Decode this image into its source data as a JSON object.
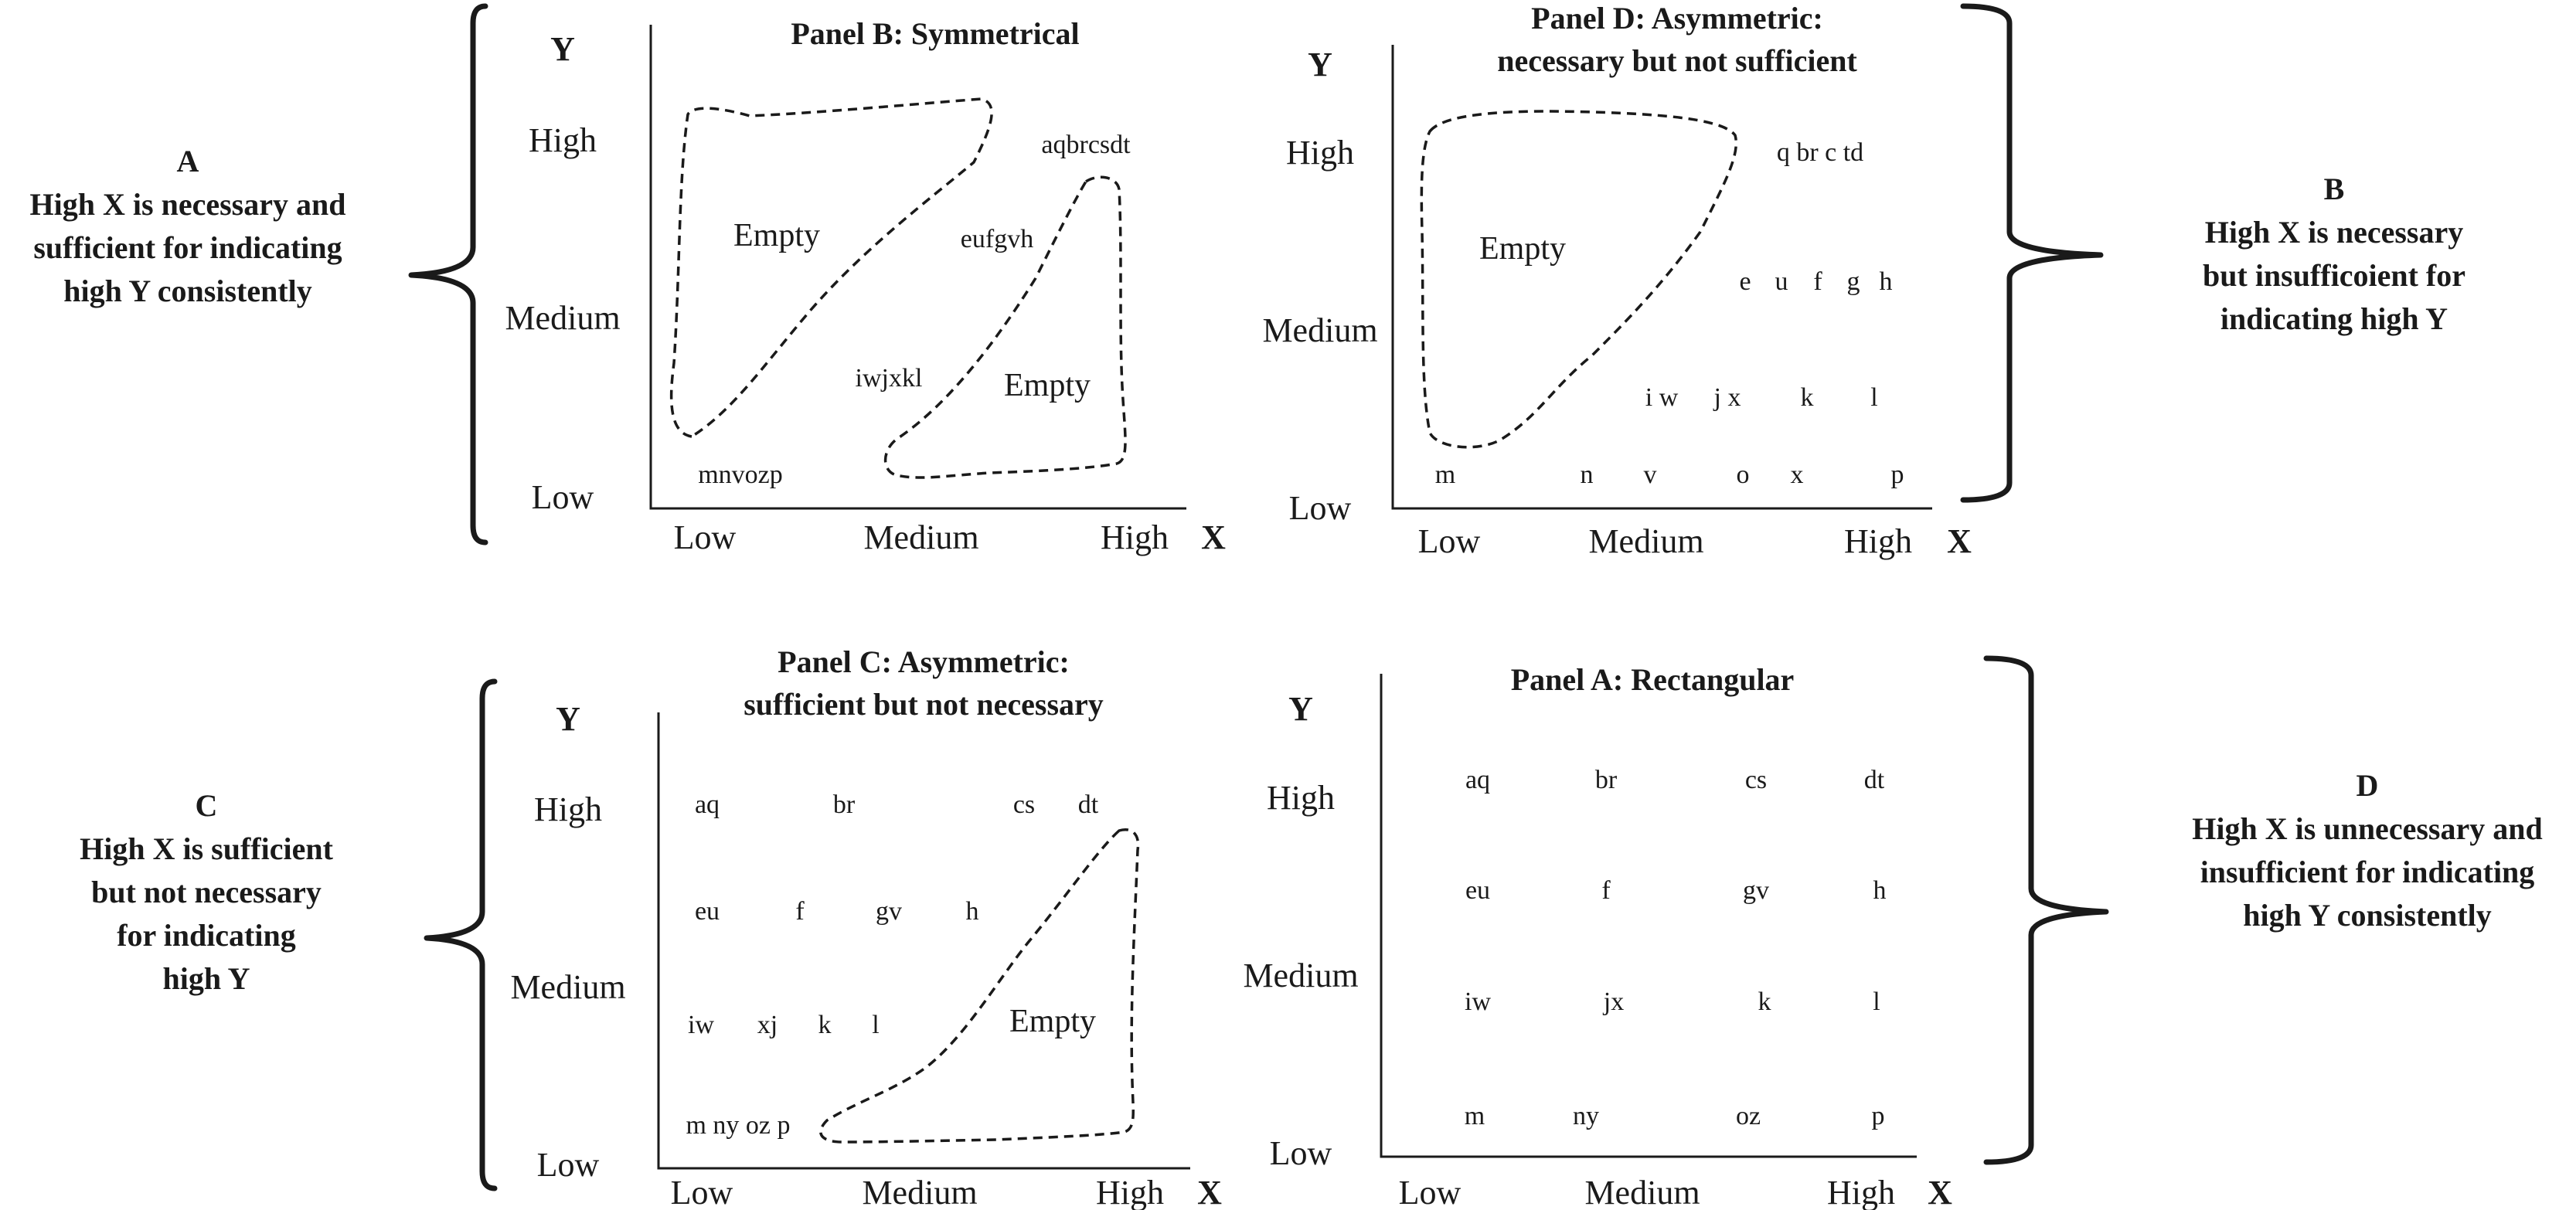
{
  "axes": {
    "y_axis_label": "Y",
    "x_axis_label": "X",
    "y_ticks": [
      "Low",
      "Medium",
      "High"
    ],
    "x_ticks": [
      "Low",
      "Medium",
      "High"
    ]
  },
  "empty_label": "Empty",
  "side_labels": {
    "A": {
      "letter": "A",
      "lines": [
        "High X is necessary and",
        "sufficient for indicating",
        "high Y consistently"
      ]
    },
    "B": {
      "letter": "B",
      "lines": [
        "High X is necessary",
        "but insufficoient for",
        "indicating high Y"
      ]
    },
    "C": {
      "letter": "C",
      "lines": [
        "High X is sufficient",
        "but not necessary",
        "for indicating",
        "high Y"
      ]
    },
    "D": {
      "letter": "D",
      "lines": [
        "High X is unnecessary and",
        "insufficient for indicating",
        "high Y consistently"
      ]
    }
  },
  "panels": {
    "symmetrical": {
      "title_lines": [
        "Panel B:  Symmetrical"
      ],
      "cells": [
        "aqbrcsdt",
        "eufgvh",
        "iwjxkl",
        "mnvozp"
      ]
    },
    "necessary": {
      "title_lines": [
        "Panel D:  Asymmetric:",
        "necessary but not sufficient"
      ],
      "cells": [
        "q br  c td",
        "e",
        "u",
        "f",
        "g",
        "h",
        "i w",
        "j x",
        "k",
        "l",
        "m",
        "n",
        "v",
        "o",
        "x",
        "p"
      ]
    },
    "sufficient": {
      "title_lines": [
        "Panel C:  Asymmetric:",
        "sufficient but not necessary"
      ],
      "cells": [
        "aq",
        "br",
        "cs",
        "dt",
        "eu",
        "f",
        "gv",
        "h",
        "iw",
        "xj",
        "k",
        "l",
        "m ny oz p"
      ]
    },
    "rectangular": {
      "title_lines": [
        "Panel A: Rectangular"
      ],
      "cells": [
        "aq",
        "br",
        "cs",
        "dt",
        "eu",
        "f",
        "gv",
        "h",
        "iw",
        "jx",
        "k",
        "l",
        "m",
        "ny",
        "oz",
        "p"
      ]
    }
  }
}
